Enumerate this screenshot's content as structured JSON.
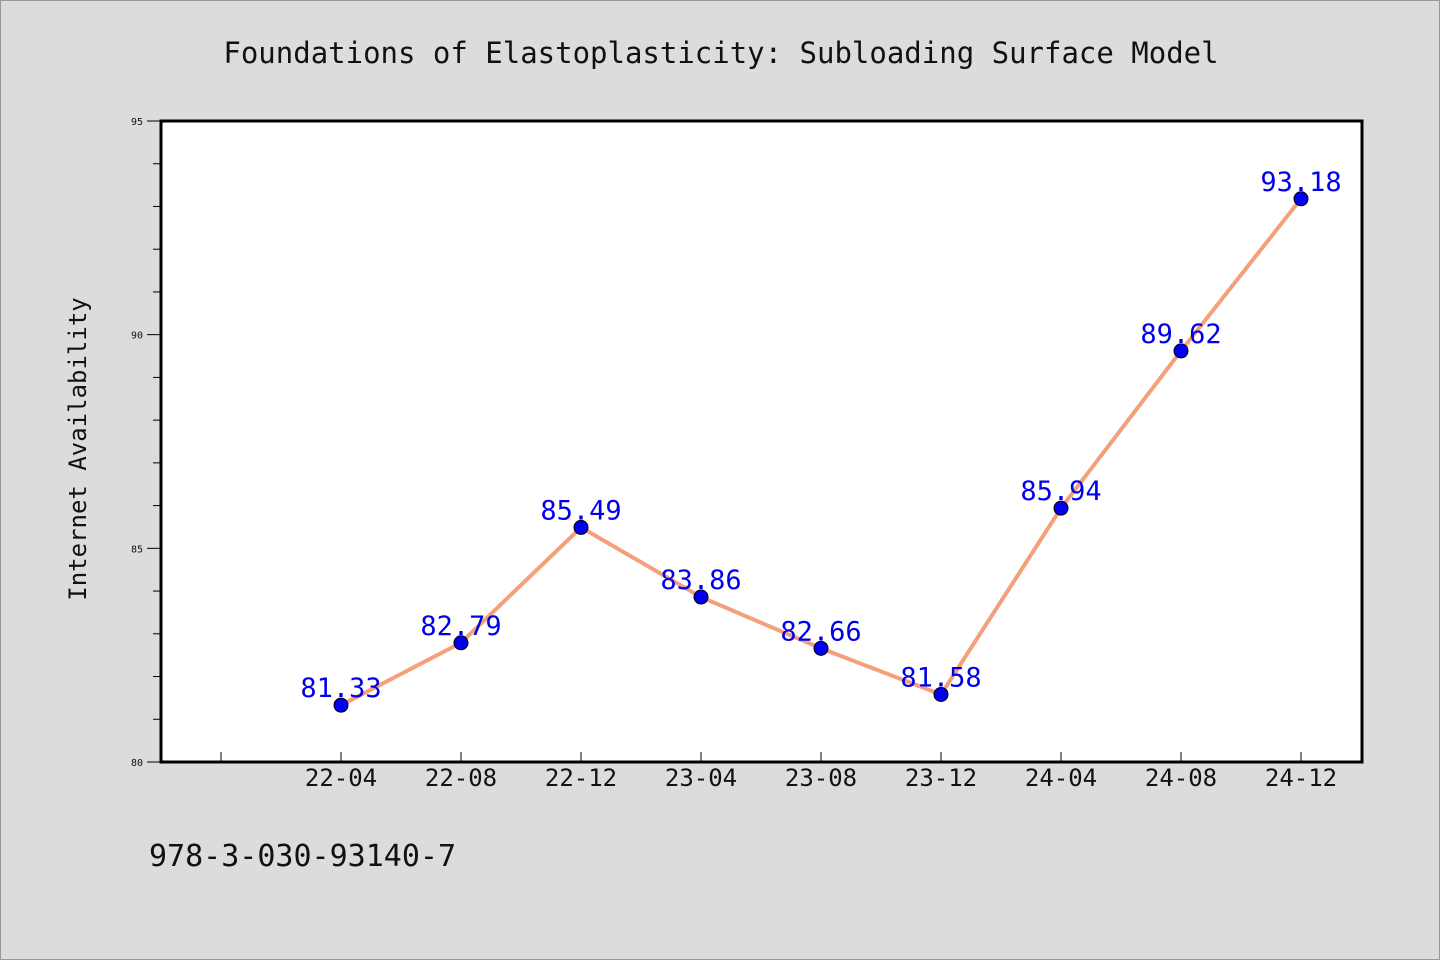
{
  "chart_data": {
    "type": "line",
    "title": "Foundations of Elastoplasticity: Subloading Surface Model",
    "xlabel": "",
    "ylabel": "Internet Availability",
    "ylim": [
      80,
      95
    ],
    "y_ticks": [
      "80",
      "85",
      "90",
      "95"
    ],
    "categories": [
      "22-04",
      "22-08",
      "22-12",
      "23-04",
      "23-08",
      "23-12",
      "24-04",
      "24-08",
      "24-12"
    ],
    "series": [
      {
        "values": [
          81.33,
          82.79,
          85.49,
          83.86,
          82.66,
          81.58,
          85.94,
          89.62,
          93.18
        ],
        "labels": [
          "81.33",
          "82.79",
          "85.49",
          "83.86",
          "82.66",
          "81.58",
          "85.94",
          "89.62",
          "93.18"
        ],
        "line_color": "#f4a07a",
        "marker_color": "#0000ee"
      }
    ],
    "label_color": "#0000ee",
    "grid": false,
    "legend": "none"
  },
  "footer": {
    "isbn": "978-3-030-93140-7"
  }
}
